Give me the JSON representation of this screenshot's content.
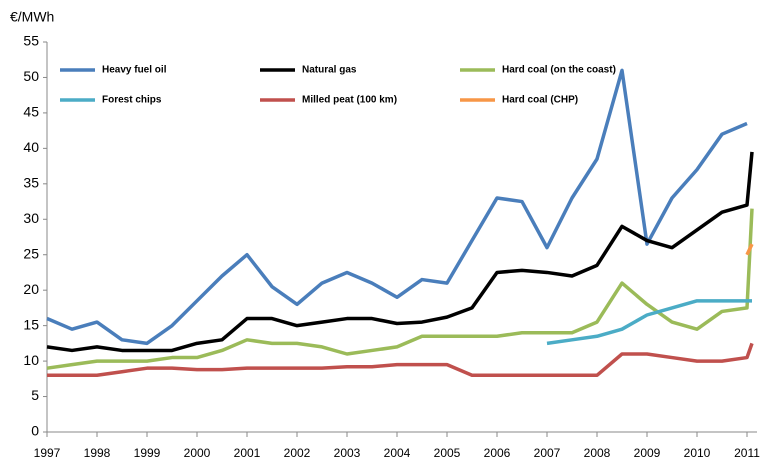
{
  "chart_data": {
    "type": "line",
    "y_axis_label": "€/MWh",
    "x": [
      1997,
      1997.5,
      1998,
      1998.5,
      1999,
      1999.5,
      2000,
      2000.5,
      2001,
      2001.5,
      2002,
      2002.5,
      2003,
      2003.5,
      2004,
      2004.5,
      2005,
      2005.5,
      2006,
      2006.5,
      2007,
      2007.5,
      2008,
      2008.5,
      2009,
      2009.5,
      2010,
      2010.5,
      2011,
      2011.1
    ],
    "series": [
      {
        "name": "Heavy fuel oil",
        "color": "#4a7ebb",
        "values": [
          16,
          14.5,
          15.5,
          13,
          12.5,
          15,
          18.5,
          22,
          25,
          20.5,
          18,
          21,
          22.5,
          21,
          19,
          21.5,
          21,
          27,
          33,
          32.5,
          26,
          33,
          38.5,
          51,
          26.5,
          33,
          37,
          42,
          43.5,
          null
        ]
      },
      {
        "name": "Natural gas",
        "color": "#000000",
        "values": [
          12,
          11.5,
          12,
          11.5,
          11.5,
          11.5,
          12.5,
          13,
          16,
          16,
          15,
          15.5,
          16,
          16,
          15.3,
          15.5,
          16.2,
          17.5,
          22.5,
          22.8,
          22.5,
          22,
          23.5,
          29,
          27,
          26,
          28.5,
          31,
          32,
          39.5
        ]
      },
      {
        "name": "Hard coal (on the coast)",
        "color": "#9bbb59",
        "values": [
          9,
          9.5,
          10,
          10,
          10,
          10.5,
          10.5,
          11.5,
          13,
          12.5,
          12.5,
          12,
          11,
          11.5,
          12,
          13.5,
          13.5,
          13.5,
          13.5,
          14,
          14,
          14,
          15.5,
          21,
          18,
          15.5,
          14.5,
          17,
          17.5,
          31.5
        ]
      },
      {
        "name": "Forest chips",
        "color": "#4bacc6",
        "values": [
          null,
          null,
          null,
          null,
          null,
          null,
          null,
          null,
          null,
          null,
          null,
          null,
          null,
          null,
          null,
          null,
          null,
          null,
          null,
          null,
          12.5,
          13,
          13.5,
          14.5,
          16.5,
          17.5,
          18.5,
          18.5,
          18.5,
          18.5
        ]
      },
      {
        "name": "Milled peat (100 km)",
        "color": "#c0504d",
        "values": [
          8,
          8,
          8,
          8.5,
          9,
          9,
          8.8,
          8.8,
          9,
          9,
          9,
          9,
          9.2,
          9.2,
          9.5,
          9.5,
          9.5,
          8,
          8,
          8,
          8,
          8,
          8,
          11,
          11,
          10.5,
          10,
          10,
          10.5,
          12.5
        ]
      },
      {
        "name": "Hard coal (CHP)",
        "color": "#f79646",
        "values": [
          null,
          null,
          null,
          null,
          null,
          null,
          null,
          null,
          null,
          null,
          null,
          null,
          null,
          null,
          null,
          null,
          null,
          null,
          null,
          null,
          null,
          null,
          null,
          null,
          null,
          null,
          null,
          null,
          25,
          26.5
        ]
      }
    ],
    "xlim": [
      1997,
      2011.2
    ],
    "xticks": [
      1997,
      1998,
      1999,
      2000,
      2001,
      2002,
      2003,
      2004,
      2005,
      2006,
      2007,
      2008,
      2009,
      2010,
      2011
    ],
    "ylim": [
      0,
      55
    ],
    "yticks": [
      0,
      5,
      10,
      15,
      20,
      25,
      30,
      35,
      40,
      45,
      50,
      55
    ]
  }
}
